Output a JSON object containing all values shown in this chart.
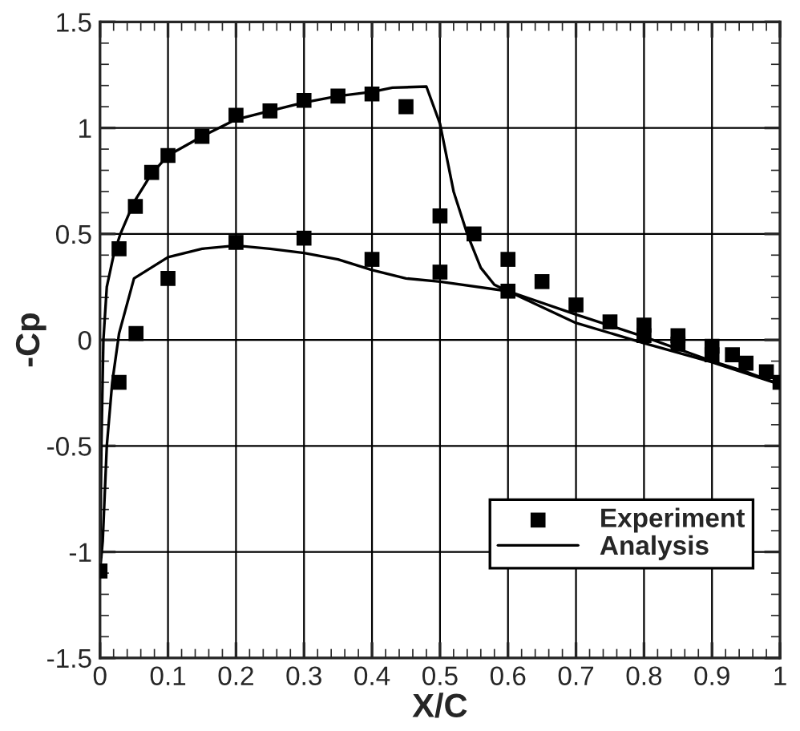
{
  "chart_data": {
    "type": "scatter",
    "xlabel": "X/C",
    "ylabel": "-Cp",
    "xlim": [
      0,
      1
    ],
    "xticks": [
      0,
      0.1,
      0.2,
      0.3,
      0.4,
      0.5,
      0.6,
      0.7,
      0.8,
      0.9,
      1
    ],
    "ylim": [
      -1.5,
      1.5
    ],
    "yticks": [
      -1.5,
      -1,
      -0.5,
      0,
      0.5,
      1,
      1.5
    ],
    "grid": true,
    "legend": "bottom right",
    "series": [
      {
        "name": "Experiment",
        "marker": "square",
        "color": "#000000",
        "x": [
          0,
          0.028,
          0.052,
          0.076,
          0.1,
          0.15,
          0.2,
          0.25,
          0.3,
          0.35,
          0.4,
          0.45,
          0.028,
          0.053,
          0.1,
          0.2,
          0.3,
          0.4,
          0.5,
          0.5,
          0.55,
          0.6,
          0.6,
          0.65,
          0.7,
          0.75,
          0.8,
          0.8,
          0.85,
          0.85,
          0.9,
          0.9,
          0.93,
          0.95,
          0.98,
          1.0
        ],
        "values": [
          -1.09,
          0.43,
          0.63,
          0.79,
          0.87,
          0.96,
          1.06,
          1.08,
          1.13,
          1.15,
          1.16,
          1.1,
          -0.2,
          0.03,
          0.29,
          0.46,
          0.48,
          0.38,
          0.585,
          0.32,
          0.5,
          0.38,
          0.23,
          0.275,
          0.165,
          0.085,
          0.07,
          0.02,
          0.02,
          -0.02,
          -0.03,
          -0.07,
          -0.07,
          -0.11,
          -0.15,
          -0.2
        ]
      },
      {
        "name": "Analysis",
        "type": "line",
        "marker": "none",
        "line_style": "solid",
        "color": "#000000",
        "x": [
          0,
          0.002,
          0.005,
          0.01,
          0.02,
          0.03,
          0.05,
          0.075,
          0.1,
          0.15,
          0.2,
          0.25,
          0.3,
          0.35,
          0.4,
          0.43,
          0.48,
          0.5,
          0.52,
          0.54,
          0.56,
          0.58,
          0.6,
          0.7,
          0.8,
          0.9,
          0.95,
          1.0
        ],
        "values": [
          -1.09,
          -0.5,
          0.0,
          0.25,
          0.4,
          0.5,
          0.65,
          0.78,
          0.87,
          0.96,
          1.04,
          1.08,
          1.12,
          1.15,
          1.17,
          1.19,
          1.195,
          1.02,
          0.7,
          0.5,
          0.34,
          0.26,
          0.23,
          0.12,
          0.015,
          -0.1,
          -0.15,
          -0.21
        ]
      },
      {
        "type": "line",
        "marker": "none",
        "line_style": "solid",
        "color": "#000000",
        "x": [
          0,
          0.004,
          0.01,
          0.018,
          0.028,
          0.05,
          0.1,
          0.15,
          0.2,
          0.25,
          0.3,
          0.35,
          0.4,
          0.45,
          0.5,
          0.6,
          0.7,
          0.8,
          0.9,
          1.0
        ],
        "values": [
          -1.09,
          -0.95,
          -0.5,
          -0.2,
          0.03,
          0.29,
          0.39,
          0.43,
          0.445,
          0.43,
          0.41,
          0.38,
          0.33,
          0.29,
          0.275,
          0.23,
          0.08,
          -0.015,
          -0.105,
          -0.21
        ]
      }
    ]
  }
}
